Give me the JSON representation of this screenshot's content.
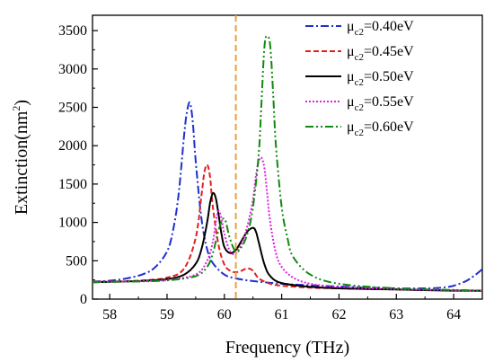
{
  "chart_data": {
    "type": "line",
    "xlabel": "Frequency (THz)",
    "ylabel_base": "Extinction(nm",
    "ylabel_sup": "2",
    "ylabel_close": ")",
    "xlim": [
      57.7,
      64.5
    ],
    "ylim": [
      0,
      3700
    ],
    "xticks": [
      58,
      59,
      60,
      61,
      62,
      63,
      64
    ],
    "yticks": [
      0,
      500,
      1000,
      1500,
      2000,
      2500,
      3000,
      3500
    ],
    "marker_line": {
      "x": 60.2,
      "color": "#E8A040"
    },
    "legend_position": "top-right",
    "series": [
      {
        "symbol": "μ",
        "sub": "c2",
        "value": "=0.40eV",
        "color": "#1F2FD0",
        "dash": "9,3,2,3",
        "x": [
          57.7,
          58.0,
          58.3,
          58.6,
          58.8,
          59.0,
          59.1,
          59.2,
          59.3,
          59.35,
          59.4,
          59.45,
          59.5,
          59.6,
          59.7,
          59.8,
          60.0,
          60.2,
          60.5,
          61.0,
          61.5,
          62.0,
          62.5,
          63.0,
          63.5,
          63.8,
          64.0,
          64.2,
          64.35,
          64.5
        ],
        "y": [
          230,
          240,
          270,
          330,
          420,
          620,
          880,
          1350,
          2150,
          2450,
          2560,
          2300,
          1800,
          1050,
          650,
          470,
          320,
          270,
          235,
          200,
          180,
          165,
          150,
          140,
          140,
          150,
          175,
          230,
          300,
          390
        ]
      },
      {
        "symbol": "μ",
        "sub": "c2",
        "value": "=0.45eV",
        "color": "#E02020",
        "dash": "6,3",
        "x": [
          57.7,
          58.0,
          58.5,
          59.0,
          59.3,
          59.5,
          59.6,
          59.65,
          59.7,
          59.75,
          59.8,
          59.9,
          60.0,
          60.1,
          60.2,
          60.3,
          60.4,
          60.5,
          60.6,
          60.8,
          61.0,
          61.5,
          62.0,
          63.0,
          64.0,
          64.5
        ],
        "y": [
          225,
          230,
          240,
          280,
          400,
          800,
          1350,
          1650,
          1750,
          1600,
          1200,
          700,
          450,
          370,
          350,
          370,
          400,
          370,
          270,
          200,
          175,
          150,
          140,
          125,
          115,
          110
        ]
      },
      {
        "symbol": "μ",
        "sub": "c2",
        "value": "=0.50eV",
        "color": "#000000",
        "dash": "",
        "x": [
          57.7,
          58.0,
          58.5,
          59.0,
          59.3,
          59.5,
          59.6,
          59.7,
          59.75,
          59.8,
          59.85,
          59.9,
          59.95,
          60.0,
          60.1,
          60.2,
          60.3,
          60.4,
          60.5,
          60.55,
          60.6,
          60.7,
          60.8,
          61.0,
          61.5,
          62.0,
          63.0,
          64.0,
          64.5
        ],
        "y": [
          220,
          225,
          235,
          260,
          320,
          460,
          650,
          1000,
          1250,
          1380,
          1320,
          1100,
          850,
          680,
          600,
          640,
          760,
          880,
          930,
          880,
          740,
          450,
          300,
          210,
          160,
          140,
          125,
          110,
          108
        ]
      },
      {
        "symbol": "μ",
        "sub": "c2",
        "value": "=0.55eV",
        "color": "#E020E0",
        "dash": "2,2",
        "x": [
          57.7,
          58.0,
          58.5,
          59.0,
          59.5,
          59.7,
          59.8,
          59.85,
          59.9,
          59.95,
          60.0,
          60.1,
          60.2,
          60.3,
          60.4,
          60.5,
          60.55,
          60.6,
          60.65,
          60.7,
          60.75,
          60.8,
          60.9,
          61.0,
          61.2,
          61.5,
          62.0,
          63.0,
          64.0,
          64.5
        ],
        "y": [
          220,
          225,
          232,
          250,
          320,
          500,
          750,
          1000,
          1150,
          1050,
          850,
          620,
          600,
          720,
          950,
          1300,
          1600,
          1800,
          1840,
          1700,
          1350,
          1000,
          600,
          420,
          280,
          200,
          160,
          130,
          115,
          110
        ]
      },
      {
        "symbol": "μ",
        "sub": "c2",
        "value": "=0.60eV",
        "color": "#108A10",
        "dash": "9,3,2,3,2,3",
        "x": [
          57.7,
          58.0,
          58.5,
          59.0,
          59.5,
          59.7,
          59.8,
          59.9,
          60.0,
          60.1,
          60.2,
          60.3,
          60.4,
          60.5,
          60.6,
          60.65,
          60.7,
          60.75,
          60.8,
          60.85,
          60.9,
          61.0,
          61.1,
          61.2,
          61.5,
          62.0,
          63.0,
          64.0,
          64.5
        ],
        "y": [
          220,
          225,
          230,
          245,
          300,
          420,
          600,
          900,
          1050,
          780,
          620,
          680,
          850,
          1200,
          1900,
          2600,
          3300,
          3430,
          3300,
          2700,
          2000,
          1200,
          800,
          550,
          320,
          200,
          140,
          120,
          112
        ]
      }
    ]
  }
}
